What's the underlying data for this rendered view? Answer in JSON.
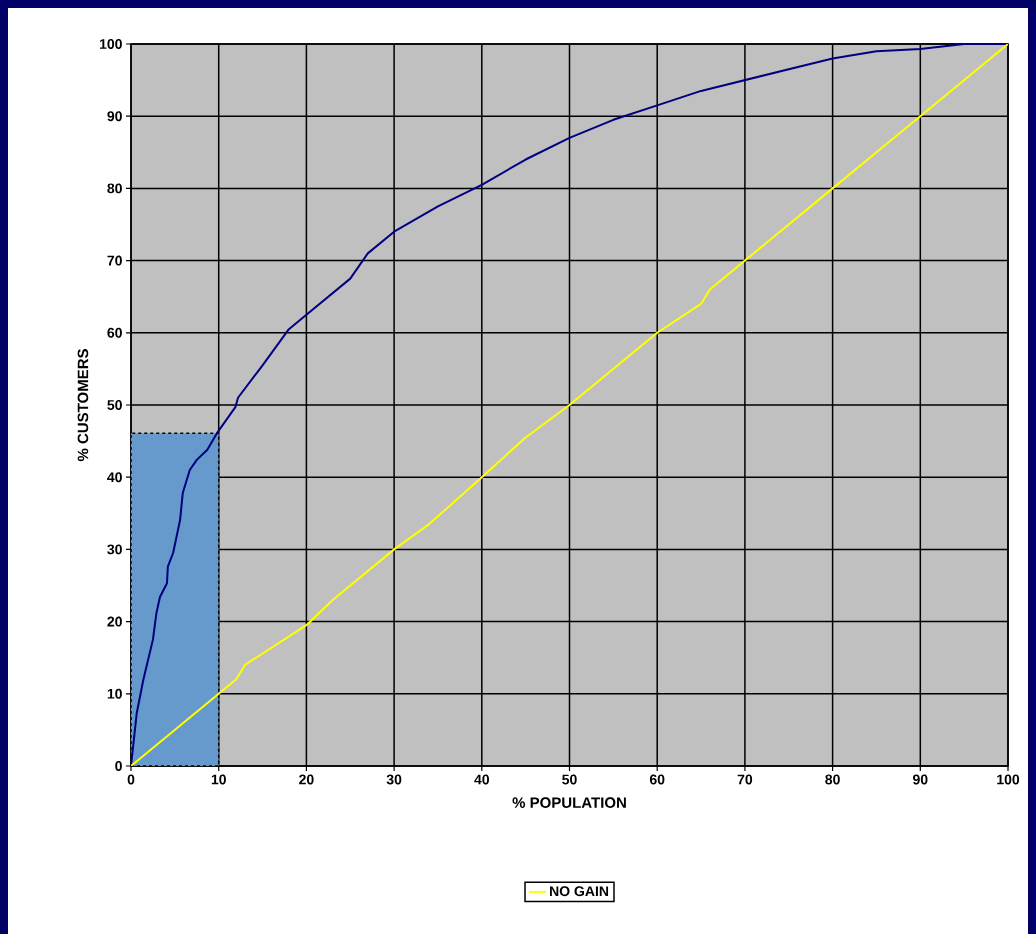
{
  "chart_data": {
    "type": "line",
    "xlabel": "% POPULATION",
    "ylabel": "% CUSTOMERS",
    "series": [
      {
        "type": "bar",
        "color": "#6699cc",
        "x": [
          5
        ],
        "values": [
          46.1
        ]
      },
      {
        "color": "#000080",
        "x": [
          0,
          0.65,
          1.4,
          2.5,
          2.9,
          3.3,
          4.1,
          4.2,
          4.8,
          5.6,
          5.9,
          6.7,
          7.5,
          8.7,
          9.8,
          11.9,
          12.2,
          15,
          18,
          20,
          25,
          27,
          30,
          35,
          40,
          45,
          50,
          55,
          60,
          65,
          70,
          75,
          80,
          85,
          90,
          95,
          100
        ],
        "values": [
          0,
          7.3,
          11.9,
          17.5,
          21.2,
          23.4,
          25.3,
          27.6,
          29.5,
          34.1,
          37.8,
          41,
          42.4,
          43.8,
          46.1,
          49.7,
          51,
          55.5,
          60.5,
          62.5,
          67.5,
          71,
          74,
          77.5,
          80.5,
          84,
          87,
          89.5,
          91.5,
          93.5,
          95,
          96.5,
          98,
          99,
          99.3,
          100,
          100
        ]
      },
      {
        "name": "NO GAIN",
        "color": "#ffff00",
        "x": [
          0,
          10,
          12,
          13,
          20,
          23,
          30,
          34,
          40,
          45,
          50,
          52,
          60,
          65,
          66,
          70,
          80,
          85,
          90,
          100
        ],
        "values": [
          0,
          10,
          12,
          14,
          19.5,
          23,
          30,
          33.5,
          40,
          45.5,
          50,
          52,
          60,
          64,
          66,
          70,
          80,
          85,
          90,
          100
        ]
      }
    ],
    "xlim": [
      0,
      100
    ],
    "xticks": [
      0,
      10,
      20,
      30,
      40,
      50,
      60,
      70,
      80,
      90,
      100
    ],
    "ylim": [
      0,
      100
    ],
    "yticks": [
      0,
      10,
      20,
      30,
      40,
      50,
      60,
      70,
      80,
      90,
      100
    ],
    "legend": "bottom",
    "marker": "none",
    "line_style": "solid",
    "grid": true
  }
}
